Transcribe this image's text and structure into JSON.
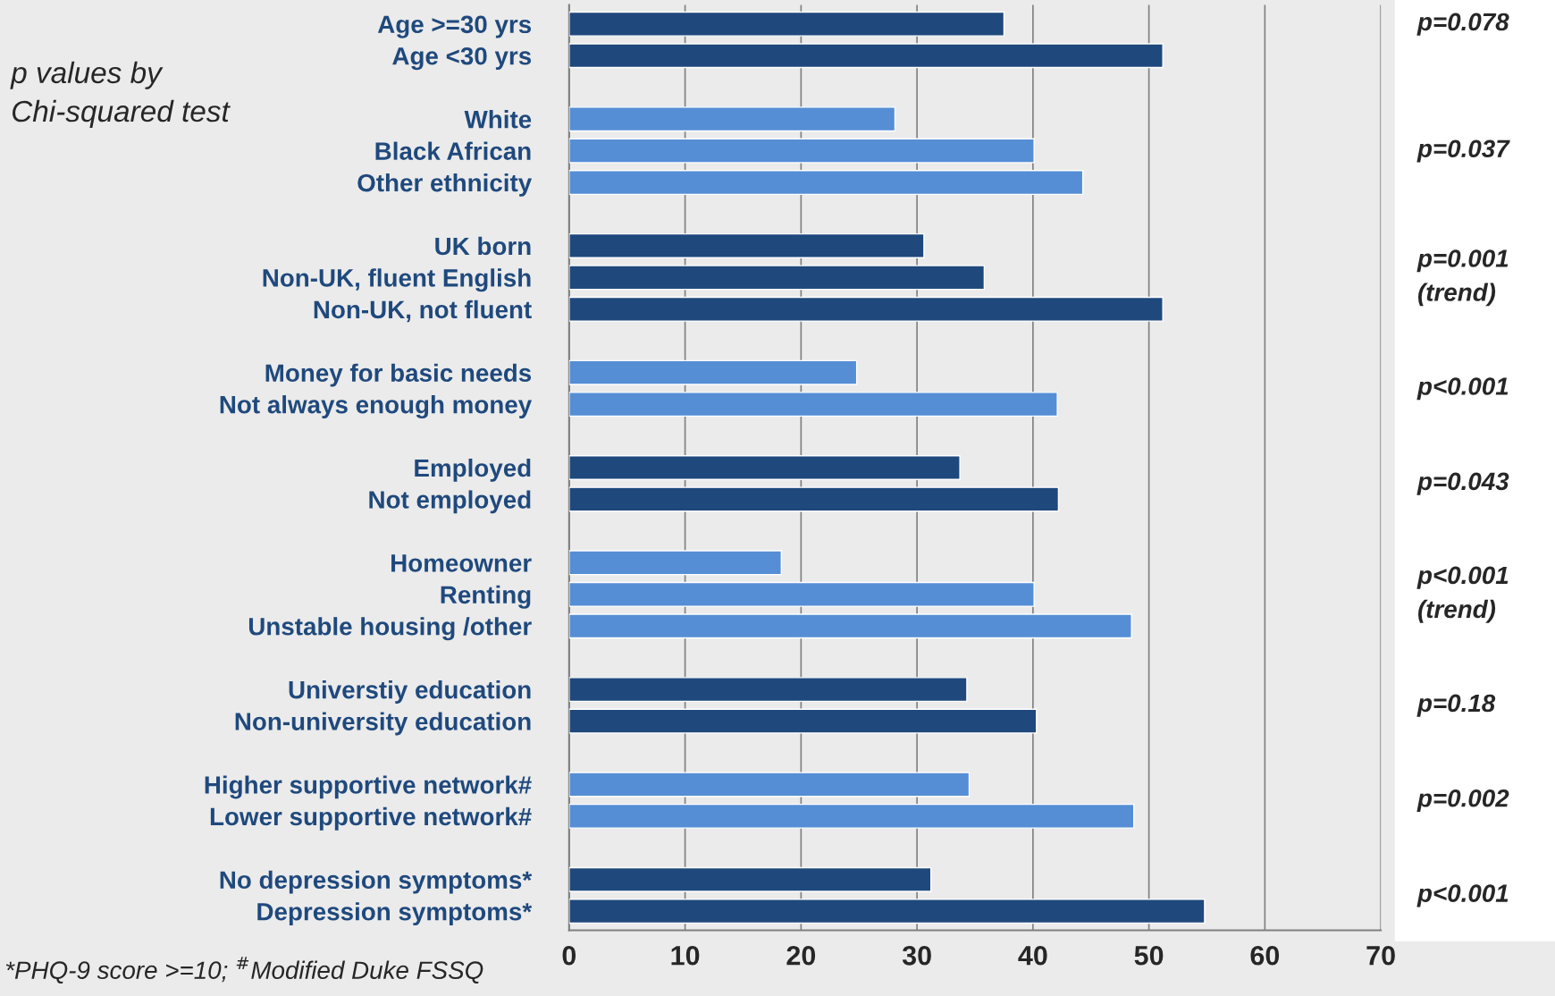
{
  "chart_data": {
    "type": "bar",
    "orientation": "horizontal",
    "categories": [
      "Age >=30 yrs",
      "Age <30 yrs",
      null,
      "White",
      "Black African",
      "Other ethnicity",
      null,
      "UK born",
      "Non-UK, fluent English",
      "Non-UK, not fluent",
      null,
      "Money for basic needs",
      "Not always enough money",
      null,
      "Employed",
      "Not employed",
      null,
      "Homeowner",
      "Renting",
      "Unstable housing /other",
      null,
      "Universtiy education",
      "Non-university education",
      null,
      "Higher supportive network#",
      "Lower supportive network#",
      null,
      "No depression symptoms*",
      "Depression symptoms*"
    ],
    "values": [
      37.5,
      51.2,
      null,
      28.1,
      40.1,
      44.3,
      null,
      30.6,
      35.8,
      51.2,
      null,
      24.8,
      42.1,
      null,
      33.7,
      42.2,
      null,
      18.3,
      40.1,
      48.5,
      null,
      34.3,
      40.3,
      null,
      34.5,
      48.7,
      null,
      31.2,
      54.8
    ],
    "colors": [
      "#1f497d",
      "#1f497d",
      null,
      "#558ed5",
      "#558ed5",
      "#558ed5",
      null,
      "#1f497d",
      "#1f497d",
      "#1f497d",
      null,
      "#558ed5",
      "#558ed5",
      null,
      "#1f497d",
      "#1f497d",
      null,
      "#558ed5",
      "#558ed5",
      "#558ed5",
      null,
      "#1f497d",
      "#1f497d",
      null,
      "#558ed5",
      "#558ed5",
      null,
      "#1f497d",
      "#1f497d"
    ],
    "xlim": [
      0,
      70
    ],
    "xticks": [
      0,
      10,
      20,
      30,
      40,
      50,
      60,
      70
    ],
    "grid": "x",
    "annotations": [
      "p values by\nChi-squared test",
      "p=0.078",
      "p=0.037",
      "p=0.001\n(trend)",
      "p<0.001",
      "p=0.043",
      "p<0.001\n(trend)",
      "p=0.18",
      "p=0.002",
      "p<0.001",
      "*PHQ-9 score >=10; $^{#}$Modified Duke FSSQ"
    ]
  }
}
